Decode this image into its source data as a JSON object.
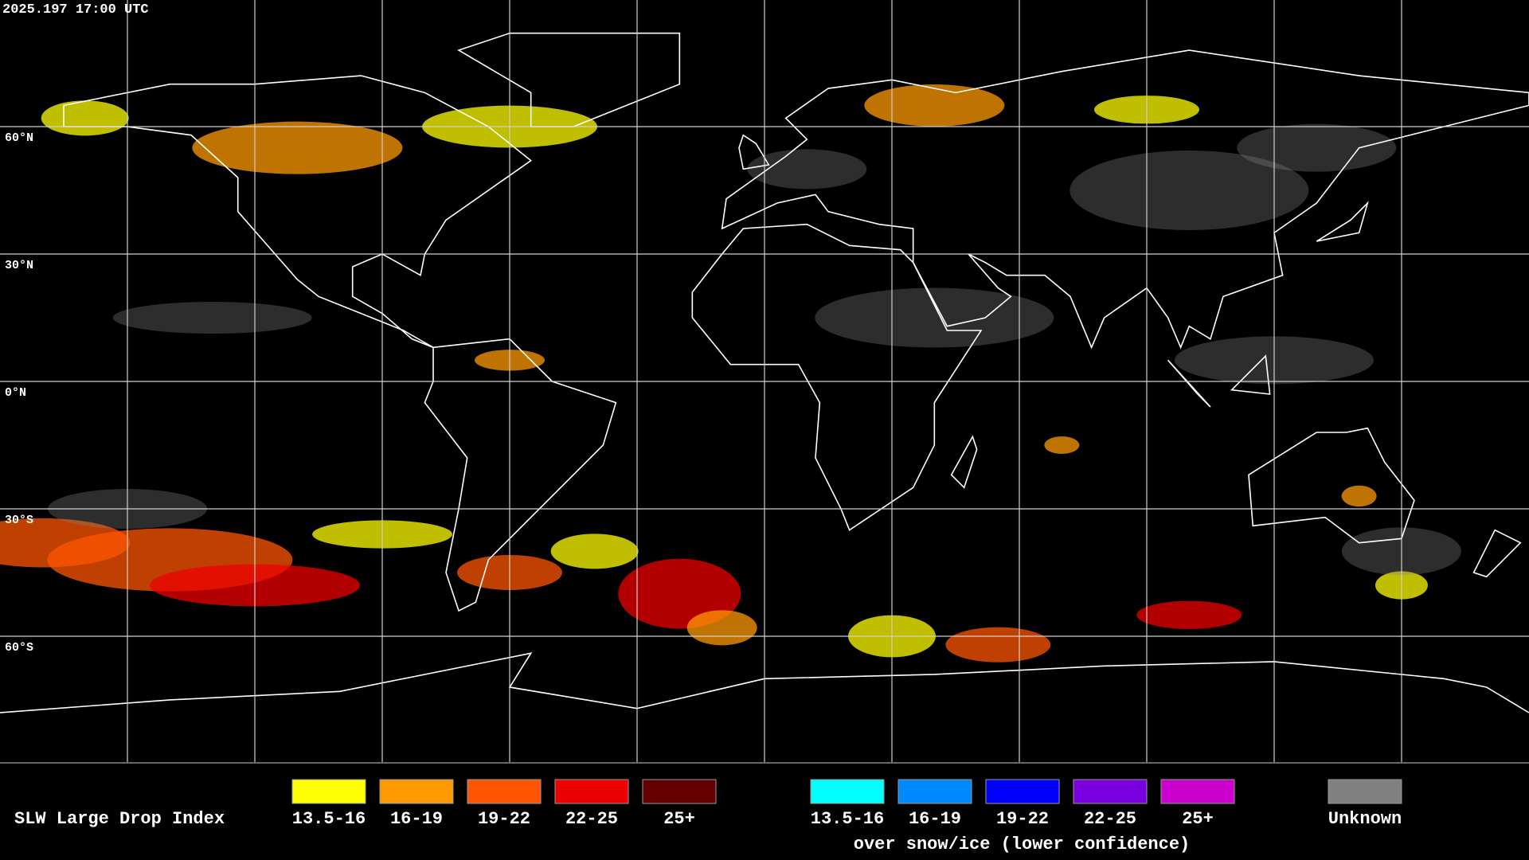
{
  "header": {
    "timestamp": "2025.197 17:00 UTC"
  },
  "grid": {
    "lat_labels": [
      "60°N",
      "30°N",
      "0°N",
      "30°S",
      "60°S"
    ]
  },
  "legend": {
    "title": "SLW Large Drop Index",
    "liquid_items": [
      {
        "label": "13.5-16",
        "color": "#ffff00"
      },
      {
        "label": "16-19",
        "color": "#ff9900"
      },
      {
        "label": "19-22",
        "color": "#ff5500"
      },
      {
        "label": "22-25",
        "color": "#ee0000"
      },
      {
        "label": "25+",
        "color": "#660000"
      }
    ],
    "snow_items": [
      {
        "label": "13.5-16",
        "color": "#00ffff"
      },
      {
        "label": "16-19",
        "color": "#0088ff"
      },
      {
        "label": "19-22",
        "color": "#0000ff"
      },
      {
        "label": "22-25",
        "color": "#7a00e0"
      },
      {
        "label": "25+",
        "color": "#cc00cc"
      }
    ],
    "snow_caption": "over snow/ice (lower confidence)",
    "unknown": {
      "label": "Unknown",
      "color": "#808080"
    }
  }
}
